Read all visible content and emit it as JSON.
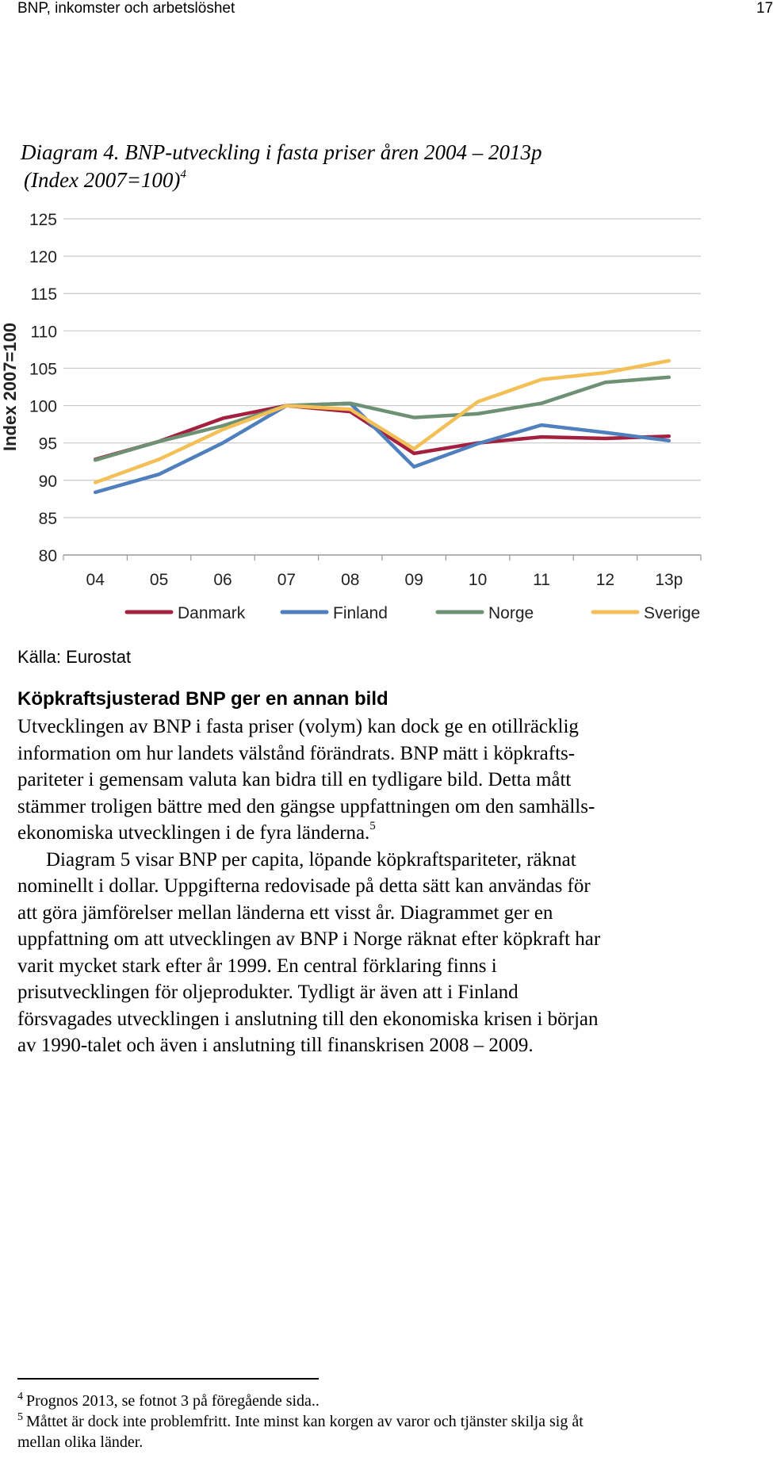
{
  "header": {
    "title": "BNP, inkomster och arbetslöshet",
    "page_number": "17"
  },
  "caption": {
    "line1": "Diagram 4. BNP-utveckling i fasta priser åren 2004 – 2013p",
    "line2": "(Index 2007=100)",
    "footnote_ref": "4"
  },
  "chart_data": {
    "type": "line",
    "ylabel": "Index 2007=100",
    "ylim": [
      80,
      125
    ],
    "yticks": [
      "80",
      "85",
      "90",
      "95",
      "100",
      "105",
      "110",
      "115",
      "120",
      "125"
    ],
    "categories": [
      "04",
      "05",
      "06",
      "07",
      "08",
      "09",
      "10",
      "11",
      "12",
      "13p"
    ],
    "grid": true,
    "legend_position": "bottom",
    "series": [
      {
        "name": "Danmark",
        "color": "#a3203f",
        "values": [
          92.8,
          95.2,
          98.3,
          100.0,
          99.2,
          93.6,
          95.0,
          95.8,
          95.6,
          95.9
        ]
      },
      {
        "name": "Finland",
        "color": "#4f7fbd",
        "values": [
          88.4,
          90.8,
          95.0,
          100.0,
          100.3,
          91.8,
          94.9,
          97.4,
          96.4,
          95.3
        ]
      },
      {
        "name": "Norge",
        "color": "#6e9173",
        "values": [
          92.7,
          95.2,
          97.3,
          100.0,
          100.3,
          98.4,
          98.9,
          100.3,
          103.1,
          103.8
        ]
      },
      {
        "name": "Sverige",
        "color": "#f3bf57",
        "values": [
          89.7,
          92.8,
          96.8,
          100.0,
          99.5,
          94.2,
          100.5,
          103.5,
          104.4,
          106.0
        ]
      }
    ]
  },
  "source": "Källa: Eurostat",
  "section": {
    "heading": "Köpkraftsjusterad BNP ger en annan bild",
    "paragraph1": [
      "Utvecklingen av BNP i fasta priser (volym) kan dock ge en otillräcklig",
      "information om hur landets välstånd förändrats. BNP mätt i köpkrafts-",
      "pariteter i gemensam valuta kan bidra till en tydligare bild. Detta mått",
      "stämmer troligen bättre med den gängse uppfattningen om den samhälls-",
      "ekonomiska utvecklingen i de fyra länderna."
    ],
    "paragraph1_footnote_ref": "5",
    "paragraph2": [
      "Diagram 5 visar BNP per capita, löpande köpkraftspariteter, räknat",
      "nominellt i dollar. Uppgifterna redovisade på detta sätt kan användas för",
      "att göra jämförelser mellan länderna ett visst år. Diagrammet ger en",
      "uppfattning om att utvecklingen av BNP i Norge räknat efter köpkraft har",
      "varit mycket stark efter år 1999. En central förklaring finns i",
      "prisutvecklingen för oljeprodukter. Tydligt är även att i Finland",
      "försvagades utvecklingen i anslutning till den ekonomiska krisen i början",
      "av 1990-talet och även i anslutning till finanskrisen 2008 – 2009."
    ]
  },
  "footnotes": [
    {
      "number": "4",
      "lines": [
        "Prognos 2013, se fotnot 3 på föregående sida.."
      ]
    },
    {
      "number": "5",
      "lines": [
        "Måttet är dock inte problemfritt. Inte minst kan korgen av varor och tjänster skilja sig åt",
        "mellan olika länder."
      ]
    }
  ]
}
